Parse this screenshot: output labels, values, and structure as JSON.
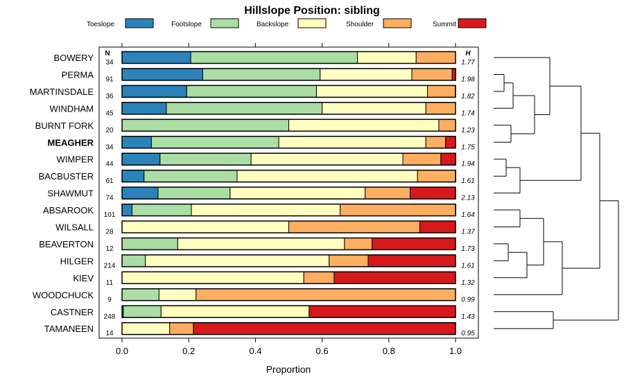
{
  "chart_data": {
    "type": "bar",
    "stacked": true,
    "orientation": "horizontal",
    "title": "Hillslope Position: sibling",
    "xlabel": "Proportion",
    "xlim": [
      0,
      1
    ],
    "xticks": [
      "0.0",
      "0.2",
      "0.4",
      "0.6",
      "0.8",
      "1.0"
    ],
    "n_header": "N",
    "h_header": "H",
    "legend_position": "top",
    "categories": [
      "Toeslope",
      "Footslope",
      "Backslope",
      "Shoulder",
      "Summit"
    ],
    "colors": [
      "#2b83ba",
      "#abdda4",
      "#ffffbf",
      "#fdae61",
      "#d7191c"
    ],
    "highlight": "MEAGHER",
    "rows": [
      {
        "label": "BOWERY",
        "n": "34",
        "h": "1.77",
        "values": [
          0.206,
          0.5,
          0.176,
          0.118,
          0.0
        ]
      },
      {
        "label": "PERMA",
        "n": "91",
        "h": "1.98",
        "values": [
          0.242,
          0.352,
          0.275,
          0.121,
          0.011
        ]
      },
      {
        "label": "MARTINSDALE",
        "n": "36",
        "h": "1.82",
        "values": [
          0.194,
          0.389,
          0.333,
          0.083,
          0.0
        ]
      },
      {
        "label": "WINDHAM",
        "n": "45",
        "h": "1.74",
        "values": [
          0.133,
          0.467,
          0.311,
          0.089,
          0.0
        ]
      },
      {
        "label": "BURNT FORK",
        "n": "20",
        "h": "1.23",
        "values": [
          0.0,
          0.5,
          0.45,
          0.05,
          0.0
        ]
      },
      {
        "label": "MEAGHER",
        "n": "34",
        "h": "1.75",
        "values": [
          0.088,
          0.382,
          0.441,
          0.059,
          0.029
        ]
      },
      {
        "label": "WIMPER",
        "n": "44",
        "h": "1.94",
        "values": [
          0.114,
          0.273,
          0.455,
          0.114,
          0.045
        ]
      },
      {
        "label": "BACBUSTER",
        "n": "61",
        "h": "1.61",
        "values": [
          0.066,
          0.279,
          0.541,
          0.115,
          0.0
        ]
      },
      {
        "label": "SHAWMUT",
        "n": "74",
        "h": "2.13",
        "values": [
          0.108,
          0.216,
          0.405,
          0.135,
          0.135
        ]
      },
      {
        "label": "ABSAROOK",
        "n": "101",
        "h": "1.64",
        "values": [
          0.03,
          0.178,
          0.446,
          0.347,
          0.0
        ]
      },
      {
        "label": "WILSALL",
        "n": "28",
        "h": "1.37",
        "values": [
          0.0,
          0.0,
          0.5,
          0.393,
          0.107
        ]
      },
      {
        "label": "BEAVERTON",
        "n": "12",
        "h": "1.73",
        "values": [
          0.0,
          0.167,
          0.5,
          0.083,
          0.25
        ]
      },
      {
        "label": "HILGER",
        "n": "214",
        "h": "1.61",
        "values": [
          0.0,
          0.07,
          0.551,
          0.117,
          0.262
        ]
      },
      {
        "label": "KIEV",
        "n": "11",
        "h": "1.32",
        "values": [
          0.0,
          0.0,
          0.545,
          0.091,
          0.364
        ]
      },
      {
        "label": "WOODCHUCK",
        "n": "9",
        "h": "0.99",
        "values": [
          0.0,
          0.111,
          0.111,
          0.778,
          0.0
        ]
      },
      {
        "label": "CASTNER",
        "n": "248",
        "h": "1.43",
        "values": [
          0.004,
          0.113,
          0.444,
          0.0,
          0.439
        ]
      },
      {
        "label": "TAMANEEN",
        "n": "14",
        "h": "0.95",
        "values": [
          0.0,
          0.0,
          0.143,
          0.071,
          0.786
        ]
      }
    ]
  }
}
